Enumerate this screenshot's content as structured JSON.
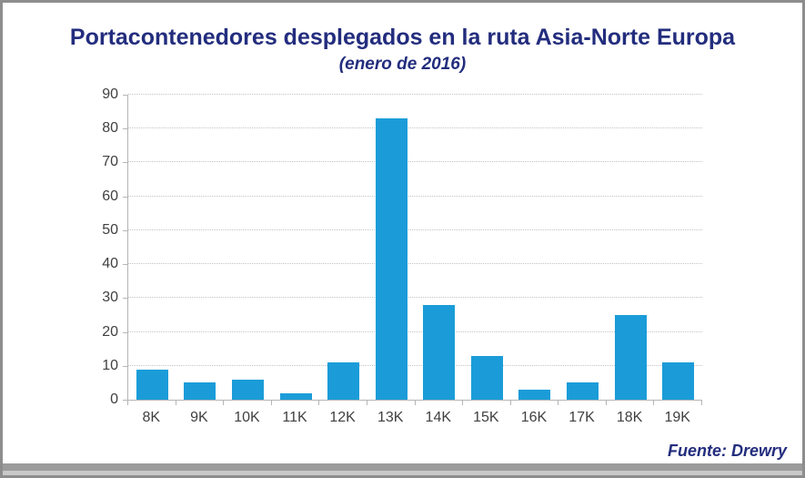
{
  "page": {
    "title": "Portacontenedores desplegados en la ruta Asia-Norte Europa",
    "subtitle": "(enero de 2016)",
    "source": "Fuente: Drewry"
  },
  "colors": {
    "bar": "#1b9cd8",
    "title_text": "#232d7e",
    "axis_text": "#404040",
    "gridline": "#c3c3c3",
    "axis_line": "#b5b5b5",
    "frame_border": "#8d8d8d"
  },
  "chart_data": {
    "type": "bar",
    "categories": [
      "8K",
      "9K",
      "10K",
      "11K",
      "12K",
      "13K",
      "14K",
      "15K",
      "16K",
      "17K",
      "18K",
      "19K"
    ],
    "values": [
      9,
      5,
      6,
      2,
      11,
      83,
      28,
      13,
      3,
      5,
      25,
      11
    ],
    "title": "Portacontenedores desplegados en la ruta Asia-Norte Europa",
    "subtitle": "(enero de 2016)",
    "source": "Fuente: Drewry",
    "xlabel": "",
    "ylabel": "",
    "ylim": [
      0,
      90
    ],
    "ytick_step": 10,
    "ytick_labels": [
      "0",
      "10",
      "20",
      "30",
      "40",
      "50",
      "60",
      "70",
      "80",
      "90"
    ],
    "grid": "horizontal-dotted",
    "legend": "none",
    "bar_color": "#1b9cd8"
  }
}
